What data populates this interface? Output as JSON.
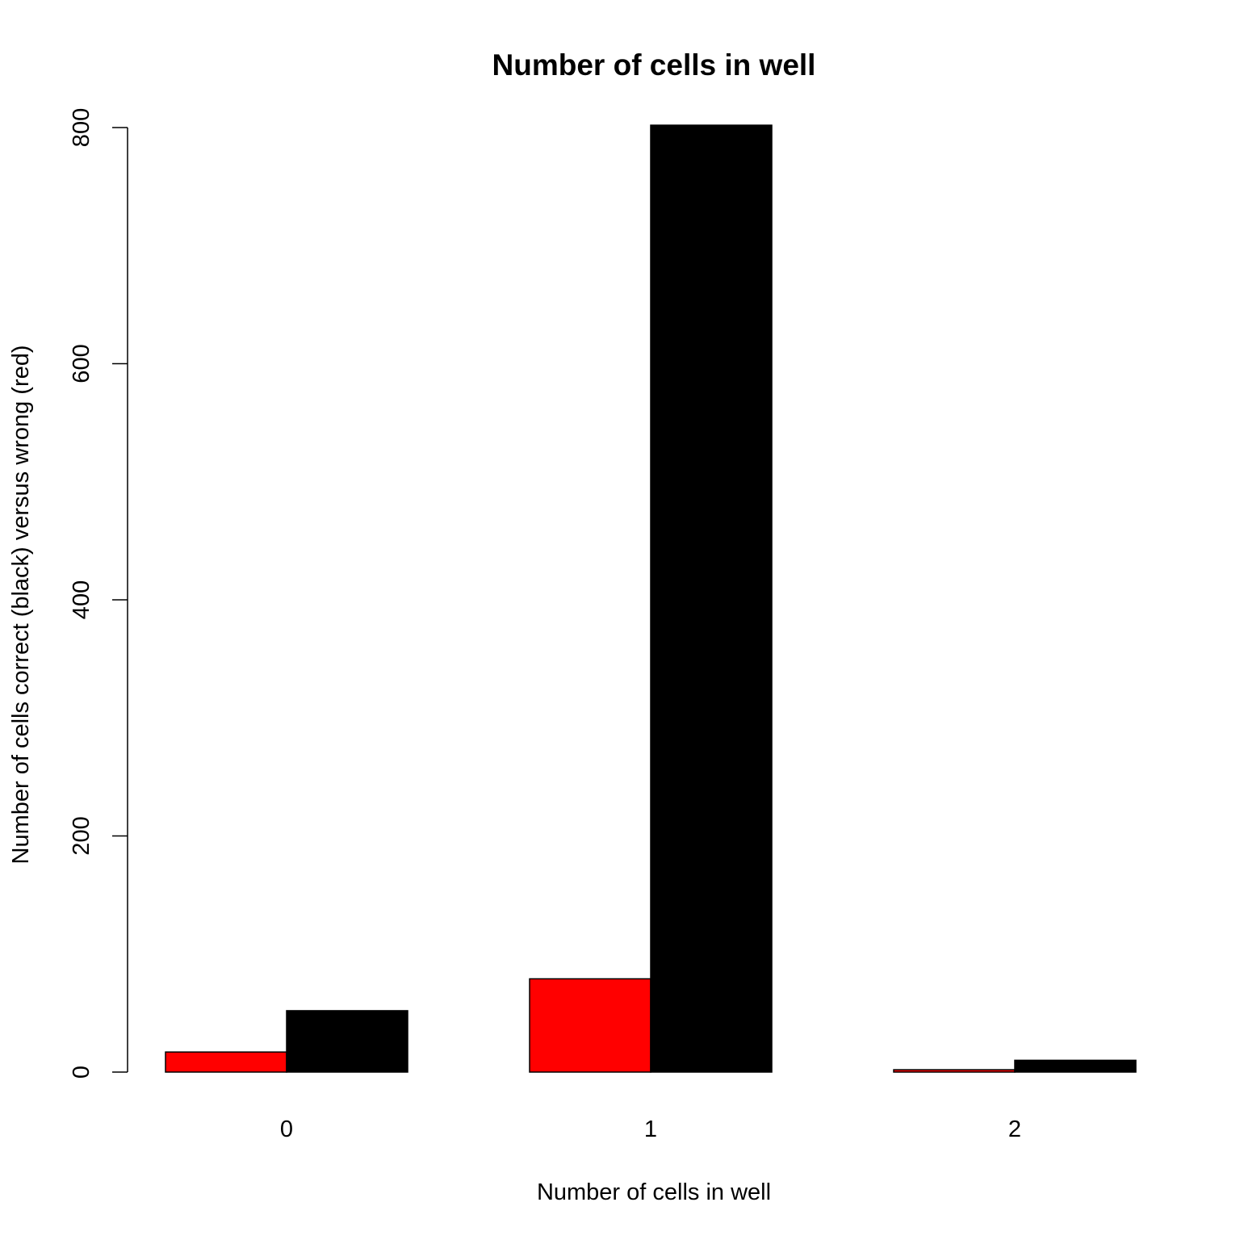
{
  "chart_data": {
    "type": "bar",
    "title": "Number of cells in well",
    "xlabel": "Number of cells in well",
    "ylabel": "Number of cells correct (black) versus wrong (red)",
    "categories": [
      "0",
      "1",
      "2"
    ],
    "series": [
      {
        "values": [
          17,
          79,
          2
        ],
        "color": "#ff0000"
      },
      {
        "values": [
          52,
          802,
          10
        ],
        "color": "#000000"
      }
    ],
    "ylim": [
      0,
      800
    ],
    "yticks": [
      0,
      200,
      400,
      600,
      800
    ],
    "grid": false,
    "legend": "none"
  }
}
